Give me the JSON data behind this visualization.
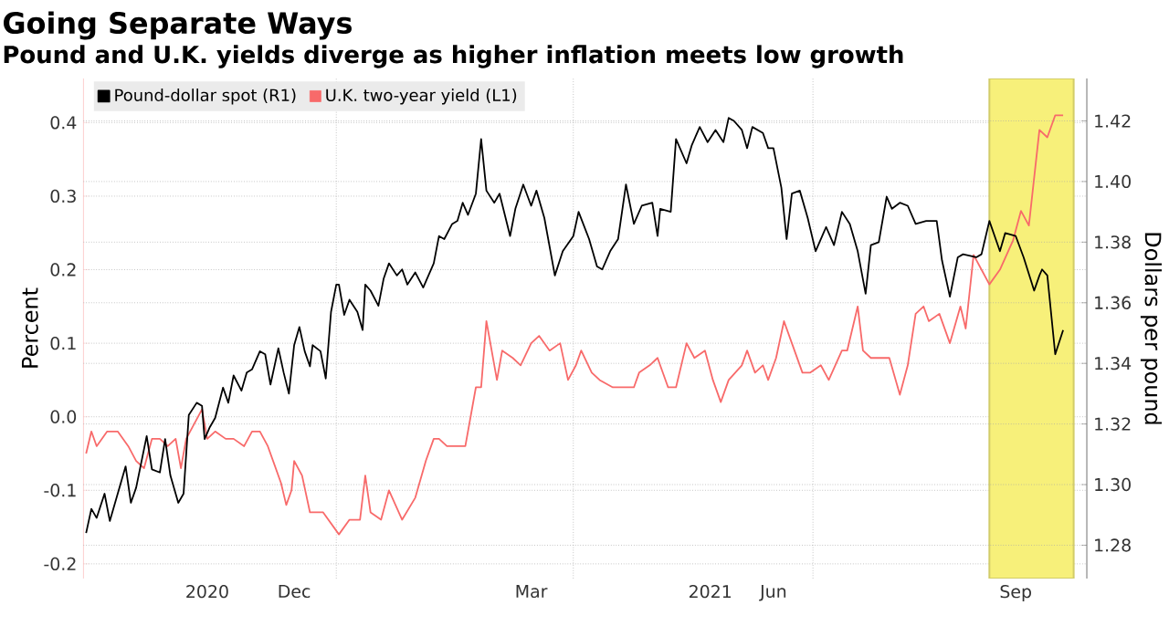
{
  "chart_data": {
    "type": "line",
    "title": "Going Separate Ways",
    "subtitle": "Pound and U.K. yields diverge as higher inflation meets low growth",
    "ylabel": "Percent",
    "y2label": "Dollars per pound",
    "xlim": [
      "2020-09-27",
      "2021-10-13"
    ],
    "xticks": [
      {
        "value": "2020-11-13",
        "label": "2020"
      },
      {
        "value": "2020-12-16",
        "label": "Dec"
      },
      {
        "value": "2021-01-01",
        "label": null
      },
      {
        "value": "2021-03-16",
        "label": "Mar"
      },
      {
        "value": "2021-04-01",
        "label": null
      },
      {
        "value": "2021-05-23",
        "label": "2021"
      },
      {
        "value": "2021-06-16",
        "label": "Jun"
      },
      {
        "value": "2021-07-01",
        "label": null
      },
      {
        "value": "2021-09-16",
        "label": "Sep"
      },
      {
        "value": "2021-10-01",
        "label": null
      }
    ],
    "ylim": [
      -0.22,
      0.46
    ],
    "yticks": [
      -0.2,
      -0.1,
      {
        "value": 0,
        "label": "0.0"
      },
      0.1,
      0.2,
      0.3,
      0.4
    ],
    "y2lim": [
      1.269,
      1.434
    ],
    "y2ticks": [
      1.28,
      {
        "value": 1.3,
        "label": "1.30"
      },
      1.32,
      1.34,
      1.36,
      1.38,
      {
        "value": 1.4,
        "label": "1.40"
      },
      1.42
    ],
    "grid": true,
    "legend": "top left",
    "bands": [
      {
        "axis": "x",
        "from": "2021-09-06",
        "to": "2021-10-08",
        "color": "#f7f07a"
      }
    ],
    "series": [
      {
        "name": "Pound-dollar spot (R1)",
        "color": "#000000",
        "axis": "y2",
        "x": [
          "2020-09-28",
          "2020-09-30",
          "2020-10-02",
          "2020-10-05",
          "2020-10-07",
          "2020-10-10",
          "2020-10-13",
          "2020-10-15",
          "2020-10-17",
          "2020-10-21",
          "2020-10-23",
          "2020-10-26",
          "2020-10-28",
          "2020-10-30",
          "2020-11-02",
          "2020-11-04",
          "2020-11-06",
          "2020-11-09",
          "2020-11-11",
          "2020-11-12",
          "2020-11-14",
          "2020-11-16",
          "2020-11-19",
          "2020-11-21",
          "2020-11-23",
          "2020-11-26",
          "2020-11-28",
          "2020-11-30",
          "2020-12-03",
          "2020-12-05",
          "2020-12-07",
          "2020-12-10",
          "2020-12-12",
          "2020-12-14",
          "2020-12-16",
          "2020-12-18",
          "2020-12-20",
          "2020-12-22",
          "2020-12-23",
          "2020-12-26",
          "2020-12-28",
          "2020-12-30",
          "2021-01-01",
          "2021-01-02",
          "2021-01-04",
          "2021-01-06",
          "2021-01-09",
          "2021-01-11",
          "2021-01-12",
          "2021-01-14",
          "2021-01-17",
          "2021-01-19",
          "2021-01-21",
          "2021-01-24",
          "2021-01-26",
          "2021-01-28",
          "2021-01-31",
          "2021-02-03",
          "2021-02-07",
          "2021-02-09",
          "2021-02-11",
          "2021-02-14",
          "2021-02-16",
          "2021-02-18",
          "2021-02-20",
          "2021-02-23",
          "2021-02-25",
          "2021-02-27",
          "2021-03-02",
          "2021-03-04",
          "2021-03-08",
          "2021-03-10",
          "2021-03-13",
          "2021-03-16",
          "2021-03-18",
          "2021-03-21",
          "2021-03-25",
          "2021-03-28",
          "2021-04-01",
          "2021-04-03",
          "2021-04-07",
          "2021-04-10",
          "2021-04-12",
          "2021-04-15",
          "2021-04-18",
          "2021-04-21",
          "2021-04-24",
          "2021-04-27",
          "2021-05-01",
          "2021-05-03",
          "2021-05-04",
          "2021-05-08",
          "2021-05-10",
          "2021-05-14",
          "2021-05-16",
          "2021-05-19",
          "2021-05-22",
          "2021-05-25",
          "2021-05-28",
          "2021-05-30",
          "2021-06-01",
          "2021-06-04",
          "2021-06-06",
          "2021-06-08",
          "2021-06-12",
          "2021-06-14",
          "2021-06-16",
          "2021-06-19",
          "2021-06-21",
          "2021-06-23",
          "2021-06-26",
          "2021-06-29",
          "2021-07-02",
          "2021-07-06",
          "2021-07-09",
          "2021-07-12",
          "2021-07-15",
          "2021-07-18",
          "2021-07-21",
          "2021-07-23",
          "2021-07-26",
          "2021-07-29",
          "2021-07-31",
          "2021-08-03",
          "2021-08-06",
          "2021-08-09",
          "2021-08-13",
          "2021-08-17",
          "2021-08-19",
          "2021-08-22",
          "2021-08-25",
          "2021-08-27",
          "2021-09-01",
          "2021-09-03",
          "2021-09-06",
          "2021-09-10",
          "2021-09-12",
          "2021-09-16",
          "2021-09-19",
          "2021-09-23",
          "2021-09-25",
          "2021-09-26",
          "2021-09-28",
          "2021-10-01",
          "2021-10-04"
        ],
        "values": [
          1.284,
          1.292,
          1.289,
          1.297,
          1.288,
          1.297,
          1.306,
          1.294,
          1.299,
          1.316,
          1.305,
          1.304,
          1.315,
          1.303,
          1.294,
          1.297,
          1.323,
          1.327,
          1.326,
          1.315,
          1.319,
          1.322,
          1.332,
          1.327,
          1.336,
          1.331,
          1.337,
          1.338,
          1.344,
          1.343,
          1.333,
          1.345,
          1.337,
          1.33,
          1.346,
          1.352,
          1.344,
          1.339,
          1.346,
          1.344,
          1.335,
          1.357,
          1.366,
          1.366,
          1.356,
          1.361,
          1.357,
          1.351,
          1.366,
          1.364,
          1.359,
          1.368,
          1.373,
          1.369,
          1.371,
          1.366,
          1.37,
          1.365,
          1.373,
          1.382,
          1.381,
          1.386,
          1.387,
          1.393,
          1.389,
          1.396,
          1.414,
          1.397,
          1.393,
          1.396,
          1.382,
          1.391,
          1.399,
          1.392,
          1.397,
          1.388,
          1.369,
          1.377,
          1.382,
          1.39,
          1.381,
          1.372,
          1.371,
          1.377,
          1.381,
          1.399,
          1.386,
          1.392,
          1.393,
          1.382,
          1.391,
          1.39,
          1.414,
          1.406,
          1.412,
          1.418,
          1.413,
          1.417,
          1.413,
          1.421,
          1.42,
          1.417,
          1.411,
          1.418,
          1.416,
          1.411,
          1.411,
          1.398,
          1.381,
          1.396,
          1.397,
          1.388,
          1.377,
          1.385,
          1.379,
          1.39,
          1.386,
          1.377,
          1.363,
          1.379,
          1.38,
          1.395,
          1.391,
          1.393,
          1.392,
          1.386,
          1.387,
          1.387,
          1.374,
          1.362,
          1.375,
          1.376,
          1.375,
          1.376,
          1.387,
          1.377,
          1.383,
          1.382,
          1.375,
          1.364,
          1.369,
          1.371,
          1.369,
          1.343,
          1.351
        ]
      },
      {
        "name": "U.K. two-year yield (L1)",
        "color": "#f86a6a",
        "x": [
          "2020-09-28",
          "2020-09-30",
          "2020-10-02",
          "2020-10-06",
          "2020-10-08",
          "2020-10-10",
          "2020-10-14",
          "2020-10-17",
          "2020-10-20",
          "2020-10-23",
          "2020-10-26",
          "2020-10-29",
          "2020-11-01",
          "2020-11-03",
          "2020-11-05",
          "2020-11-08",
          "2020-11-11",
          "2020-11-13",
          "2020-11-16",
          "2020-11-20",
          "2020-11-23",
          "2020-11-27",
          "2020-11-30",
          "2020-12-03",
          "2020-12-06",
          "2020-12-11",
          "2020-12-13",
          "2020-12-15",
          "2020-12-16",
          "2020-12-19",
          "2020-12-22",
          "2020-12-27",
          "2021-01-02",
          "2021-01-06",
          "2021-01-10",
          "2021-01-12",
          "2021-01-14",
          "2021-01-18",
          "2021-01-21",
          "2021-01-26",
          "2021-01-31",
          "2021-02-04",
          "2021-02-07",
          "2021-02-09",
          "2021-02-12",
          "2021-02-16",
          "2021-02-19",
          "2021-02-23",
          "2021-02-25",
          "2021-02-27",
          "2021-03-03",
          "2021-03-05",
          "2021-03-09",
          "2021-03-12",
          "2021-03-16",
          "2021-03-19",
          "2021-03-23",
          "2021-03-27",
          "2021-03-30",
          "2021-04-02",
          "2021-04-04",
          "2021-04-08",
          "2021-04-11",
          "2021-04-16",
          "2021-04-19",
          "2021-04-24",
          "2021-04-26",
          "2021-04-30",
          "2021-05-03",
          "2021-05-07",
          "2021-05-10",
          "2021-05-14",
          "2021-05-17",
          "2021-05-21",
          "2021-05-24",
          "2021-05-27",
          "2021-05-30",
          "2021-06-04",
          "2021-06-06",
          "2021-06-09",
          "2021-06-12",
          "2021-06-14",
          "2021-06-17",
          "2021-06-20",
          "2021-06-23",
          "2021-06-27",
          "2021-06-30",
          "2021-07-04",
          "2021-07-07",
          "2021-07-12",
          "2021-07-14",
          "2021-07-18",
          "2021-07-20",
          "2021-07-23",
          "2021-07-27",
          "2021-07-30",
          "2021-08-03",
          "2021-08-06",
          "2021-08-09",
          "2021-08-12",
          "2021-08-14",
          "2021-08-18",
          "2021-08-22",
          "2021-08-26",
          "2021-08-28",
          "2021-08-31",
          "2021-09-03",
          "2021-09-06",
          "2021-09-10",
          "2021-09-15",
          "2021-09-18",
          "2021-09-21",
          "2021-09-25",
          "2021-09-28",
          "2021-10-01",
          "2021-10-04"
        ],
        "values": [
          -0.05,
          -0.02,
          -0.04,
          -0.02,
          -0.02,
          -0.02,
          -0.04,
          -0.06,
          -0.07,
          -0.03,
          -0.03,
          -0.04,
          -0.03,
          -0.07,
          -0.03,
          -0.01,
          0.01,
          -0.03,
          -0.02,
          -0.03,
          -0.03,
          -0.04,
          -0.02,
          -0.02,
          -0.04,
          -0.09,
          -0.12,
          -0.1,
          -0.06,
          -0.08,
          -0.13,
          -0.13,
          -0.16,
          -0.14,
          -0.14,
          -0.08,
          -0.13,
          -0.14,
          -0.1,
          -0.14,
          -0.11,
          -0.06,
          -0.03,
          -0.03,
          -0.04,
          -0.04,
          -0.04,
          0.04,
          0.04,
          0.13,
          0.05,
          0.09,
          0.08,
          0.07,
          0.1,
          0.11,
          0.09,
          0.1,
          0.05,
          0.07,
          0.09,
          0.06,
          0.05,
          0.04,
          0.04,
          0.04,
          0.06,
          0.07,
          0.08,
          0.04,
          0.04,
          0.1,
          0.08,
          0.09,
          0.05,
          0.02,
          0.05,
          0.07,
          0.09,
          0.06,
          0.07,
          0.05,
          0.08,
          0.13,
          0.1,
          0.06,
          0.06,
          0.07,
          0.05,
          0.09,
          0.09,
          0.15,
          0.09,
          0.08,
          0.08,
          0.08,
          0.03,
          0.07,
          0.14,
          0.15,
          0.13,
          0.14,
          0.1,
          0.15,
          0.12,
          0.22,
          0.2,
          0.18,
          0.2,
          0.24,
          0.28,
          0.26,
          0.39,
          0.38,
          0.41,
          0.41
        ]
      }
    ]
  }
}
